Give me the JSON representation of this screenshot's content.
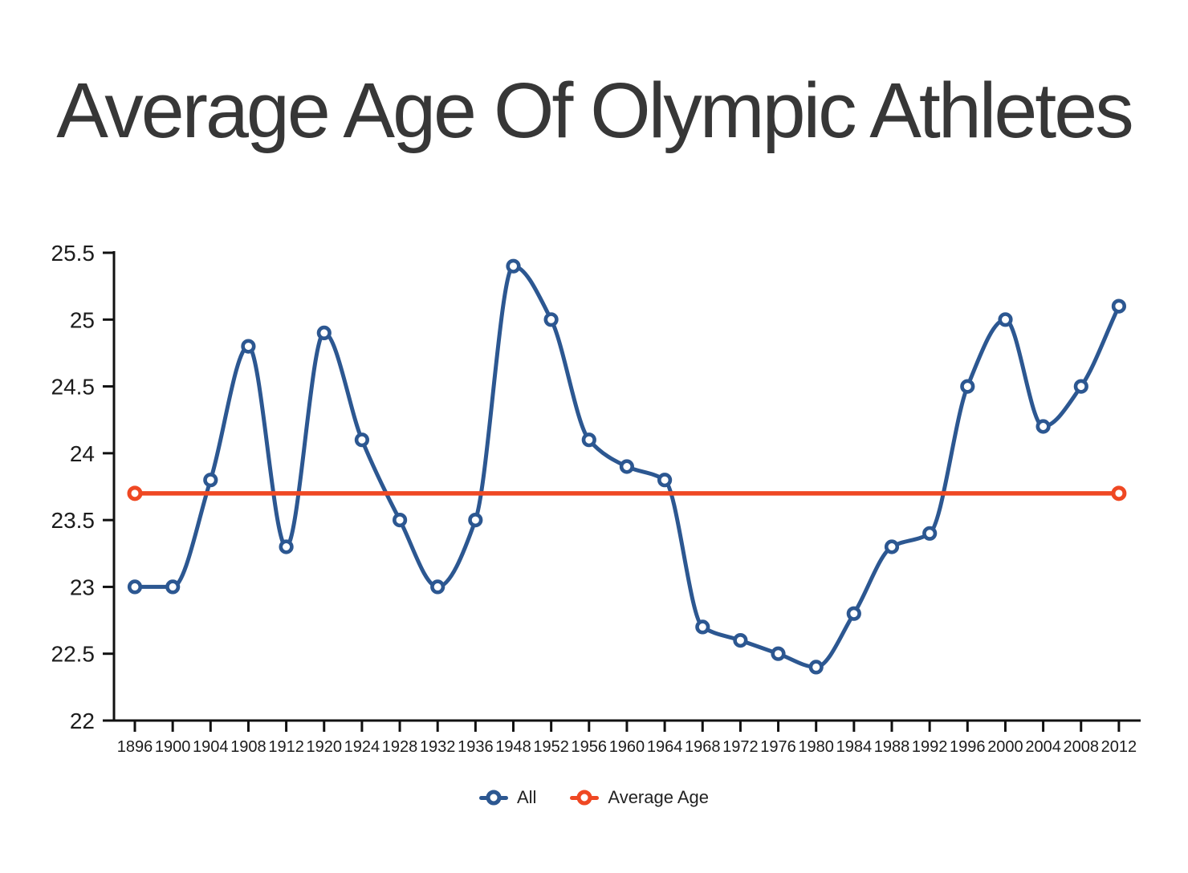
{
  "title": "Average Age Of Olympic Athletes",
  "colors": {
    "all_series": "#2c5791",
    "average_series": "#ef4823",
    "title_text": "#373737",
    "axis_text": "#1c1c1c",
    "axis_line": "#111111",
    "marker_fill": "#ffffff"
  },
  "chart_data": {
    "type": "line",
    "title": "Average Age Of Olympic Athletes",
    "xlabel": "",
    "ylabel": "",
    "ylim": [
      22,
      25.5
    ],
    "yticks": [
      22,
      22.5,
      23,
      23.5,
      24,
      24.5,
      25,
      25.5
    ],
    "grid": false,
    "legend_position": "bottom",
    "categories": [
      "1896",
      "1900",
      "1904",
      "1908",
      "1912",
      "1920",
      "1924",
      "1928",
      "1932",
      "1936",
      "1948",
      "1952",
      "1956",
      "1960",
      "1964",
      "1968",
      "1972",
      "1976",
      "1980",
      "1984",
      "1988",
      "1992",
      "1996",
      "2000",
      "2004",
      "2008",
      "2012"
    ],
    "series": [
      {
        "name": "All",
        "color": "#2c5791",
        "marker": "open-circle",
        "curve": "monotone",
        "values": [
          23.0,
          23.0,
          23.8,
          24.8,
          23.3,
          24.9,
          24.1,
          23.5,
          23.0,
          23.5,
          25.4,
          25.0,
          24.1,
          23.9,
          23.8,
          22.7,
          22.6,
          22.5,
          22.4,
          22.8,
          23.3,
          23.4,
          24.5,
          25.0,
          24.2,
          24.5,
          25.1
        ]
      },
      {
        "name": "Average Age",
        "color": "#ef4823",
        "style": "horizontal-reference-line",
        "marker": "open-circle-endpoints",
        "value": 23.7
      }
    ]
  }
}
